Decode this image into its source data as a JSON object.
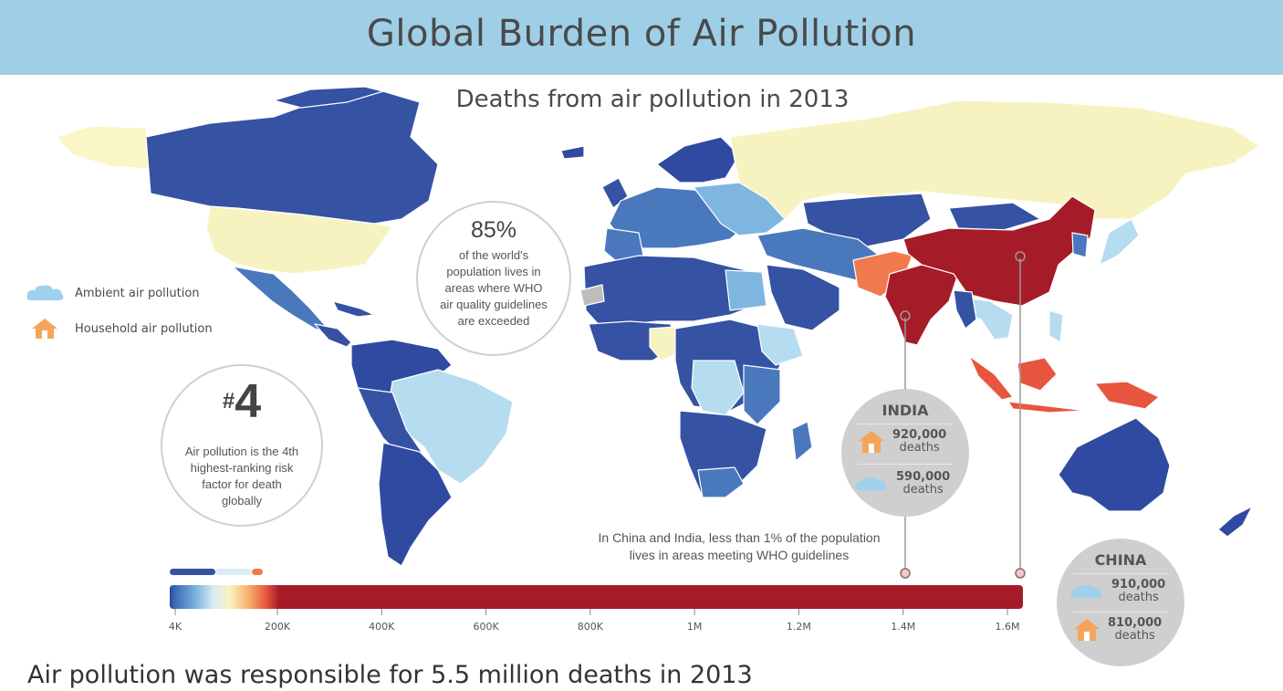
{
  "header": {
    "title": "Global Burden of Air Pollution"
  },
  "map": {
    "subtitle": "Deaths from air pollution in 2013",
    "regions": [
      {
        "name": "Greenland",
        "level": "very-low",
        "color": "#faf6c6"
      },
      {
        "name": "Canada",
        "level": "low",
        "color": "#3552a3"
      },
      {
        "name": "United States",
        "level": "mid",
        "color": "#f7f3c0"
      },
      {
        "name": "Mexico",
        "level": "low",
        "color": "#4a78bd"
      },
      {
        "name": "Central America",
        "level": "low",
        "color": "#3552a3"
      },
      {
        "name": "Brazil",
        "level": "mid-low",
        "color": "#b6dcef"
      },
      {
        "name": "South America",
        "level": "low",
        "color": "#2f4aa0"
      },
      {
        "name": "Europe",
        "level": "low",
        "color": "#4a78bd"
      },
      {
        "name": "Russia",
        "level": "mid",
        "color": "#f7f3c0"
      },
      {
        "name": "Africa",
        "level": "low",
        "color": "#3552a3"
      },
      {
        "name": "Nigeria",
        "level": "mid",
        "color": "#f7f3c0"
      },
      {
        "name": "Middle East",
        "level": "low",
        "color": "#3552a3"
      },
      {
        "name": "Pakistan",
        "level": "high",
        "color": "#f07a4c"
      },
      {
        "name": "India",
        "level": "very-high",
        "color": "#a51c28"
      },
      {
        "name": "China",
        "level": "very-high",
        "color": "#a51c28"
      },
      {
        "name": "Southeast Asia",
        "level": "mid-low",
        "color": "#b6dcef"
      },
      {
        "name": "Indonesia",
        "level": "high",
        "color": "#e8553e"
      },
      {
        "name": "Japan",
        "level": "mid-low",
        "color": "#b6dcef"
      },
      {
        "name": "Australia",
        "level": "low",
        "color": "#2f4aa0"
      }
    ]
  },
  "legend": {
    "ambient_label": "Ambient air pollution",
    "household_label": "Household air pollution",
    "ambient_icon": "cloud-icon",
    "household_icon": "house-icon",
    "ambient_color": "#9fd0ec",
    "household_color": "#f5a55a"
  },
  "stat_85": {
    "value": "85%",
    "text": "of the world's population lives in areas where WHO air quality guidelines are exceeded"
  },
  "stat_4": {
    "value": "4",
    "prefix": "#",
    "text": "Air pollution is the 4th highest-ranking risk factor for death globally"
  },
  "india": {
    "name": "INDIA",
    "household_value": "920,000",
    "household_unit": "deaths",
    "ambient_value": "590,000",
    "ambient_unit": "deaths",
    "marker_value": 1400000
  },
  "china": {
    "name": "CHINA",
    "ambient_value": "910,000",
    "ambient_unit": "deaths",
    "household_value": "810,000",
    "household_unit": "deaths",
    "marker_value": 1520000
  },
  "note": "In China and India, less than 1% of the population lives in areas meeting WHO guidelines",
  "scale": {
    "ticks": [
      "4K",
      "200K",
      "400K",
      "600K",
      "800K",
      "1M",
      "1.2M",
      "1.4M",
      "1.6M"
    ],
    "tick_values": [
      4000,
      200000,
      400000,
      600000,
      800000,
      1000000,
      1200000,
      1400000,
      1600000
    ],
    "max": 1620000,
    "gradient_stops": [
      "#2f4aa0",
      "#3e6cb6",
      "#7fb6e0",
      "#d9ecf3",
      "#f9f2c0",
      "#f6b06a",
      "#e8553e",
      "#a51c28"
    ],
    "fill_color": "#a51c28"
  },
  "footer": "Air pollution was responsible for 5.5 million deaths in 2013"
}
